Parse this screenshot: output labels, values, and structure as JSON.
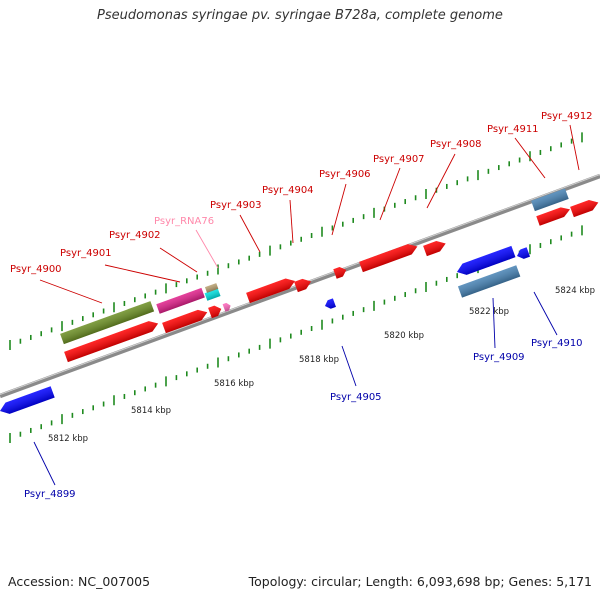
{
  "title": "Pseudomonas syringae pv. syringae B728a, complete genome",
  "footer": {
    "accession": "Accession: NC_007005",
    "topology": "Topology: circular; Length: 6,093,698 bp; Genes: 5,171"
  },
  "colors": {
    "forward_cds": "#ff0000",
    "reverse_cds": "#0000ff",
    "forward_label": "#cc0000",
    "reverse_label": "#0000aa",
    "rna": "#ff66bb",
    "rna_label": "#ff88aa",
    "pseudo_forward": "#6b8e23",
    "pseudo_reverse": "#4682b4",
    "tick": "#1f8a1f"
  },
  "ticks": [
    "5812 kbp",
    "5814 kbp",
    "5816 kbp",
    "5818 kbp",
    "5820 kbp",
    "5822 kbp",
    "5824 kbp"
  ],
  "genes": [
    {
      "id": "Psyr_4899",
      "strand": "reverse",
      "kind": "cds"
    },
    {
      "id": "Psyr_4900",
      "strand": "forward",
      "kind": "cds"
    },
    {
      "id": "Psyr_4901",
      "strand": "forward",
      "kind": "cds"
    },
    {
      "id": "Psyr_4902",
      "strand": "forward",
      "kind": "cds"
    },
    {
      "id": "Psyr_RNA76",
      "strand": "forward",
      "kind": "rna"
    },
    {
      "id": "Psyr_4903",
      "strand": "forward",
      "kind": "cds"
    },
    {
      "id": "Psyr_4904",
      "strand": "forward",
      "kind": "cds"
    },
    {
      "id": "Psyr_4905",
      "strand": "reverse",
      "kind": "cds"
    },
    {
      "id": "Psyr_4906",
      "strand": "forward",
      "kind": "cds"
    },
    {
      "id": "Psyr_4907",
      "strand": "forward",
      "kind": "cds"
    },
    {
      "id": "Psyr_4908",
      "strand": "forward",
      "kind": "cds"
    },
    {
      "id": "Psyr_4909",
      "strand": "reverse",
      "kind": "cds"
    },
    {
      "id": "Psyr_4910",
      "strand": "reverse",
      "kind": "cds"
    },
    {
      "id": "Psyr_4911",
      "strand": "forward",
      "kind": "cds"
    },
    {
      "id": "Psyr_4912",
      "strand": "forward",
      "kind": "cds"
    }
  ]
}
